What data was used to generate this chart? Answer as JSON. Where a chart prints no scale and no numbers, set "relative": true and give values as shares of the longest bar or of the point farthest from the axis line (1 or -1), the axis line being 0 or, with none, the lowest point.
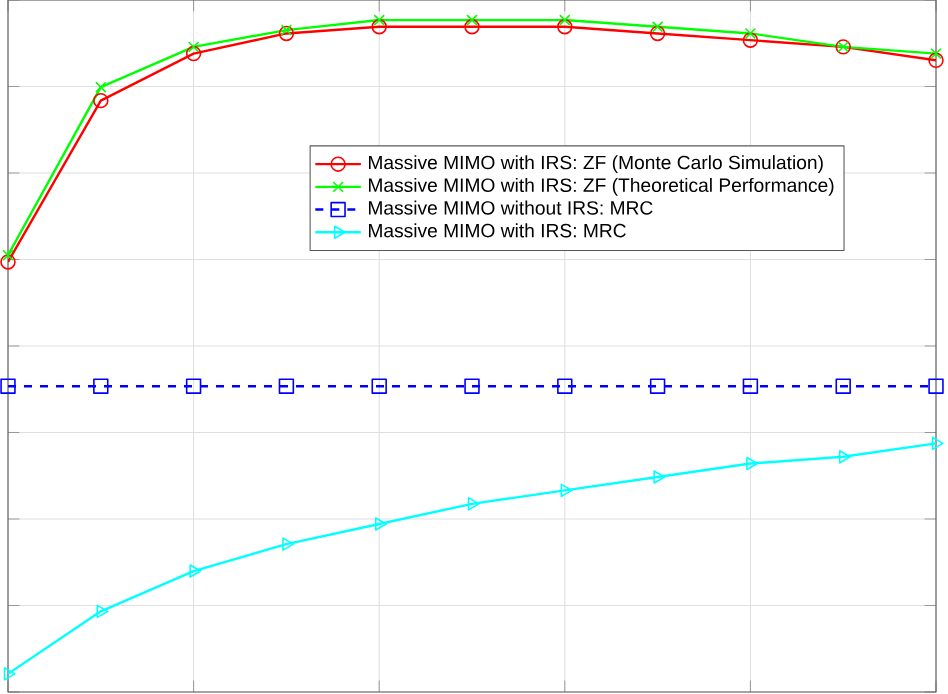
{
  "chart_data": {
    "type": "line",
    "relative": true,
    "categories": [
      null,
      null,
      null,
      null,
      null,
      null,
      null,
      null,
      null,
      null,
      null
    ],
    "series": [
      {
        "name": "Massive MIMO with IRS: ZF (Monte Carlo Simulation)",
        "color": "#ff0000",
        "marker": "circle",
        "line_style": "solid",
        "values": [
          0.64,
          0.88,
          0.95,
          0.98,
          0.99,
          0.99,
          0.99,
          0.98,
          0.97,
          0.96,
          0.94
        ]
      },
      {
        "name": "Massive MIMO with IRS: ZF (Theoretical Performance)",
        "color": "#00ff00",
        "marker": "cross",
        "line_style": "solid",
        "values": [
          0.65,
          0.9,
          0.96,
          0.985,
          1.0,
          1.0,
          1.0,
          0.99,
          0.98,
          0.96,
          0.95
        ]
      },
      {
        "name": "Massive MIMO without IRS: MRC",
        "color": "#0000ff",
        "marker": "square",
        "line_style": "dashed",
        "values": [
          0.455,
          0.455,
          0.455,
          0.455,
          0.455,
          0.455,
          0.455,
          0.455,
          0.455,
          0.455,
          0.455
        ]
      },
      {
        "name": "Massive MIMO with IRS: MRC",
        "color": "#00ffff",
        "marker": "triangle",
        "line_style": "solid",
        "values": [
          0.027,
          0.12,
          0.18,
          0.22,
          0.25,
          0.28,
          0.3,
          0.32,
          0.34,
          0.35,
          0.37
        ]
      }
    ],
    "grid": true,
    "legend": "right",
    "tick_labels": false
  }
}
